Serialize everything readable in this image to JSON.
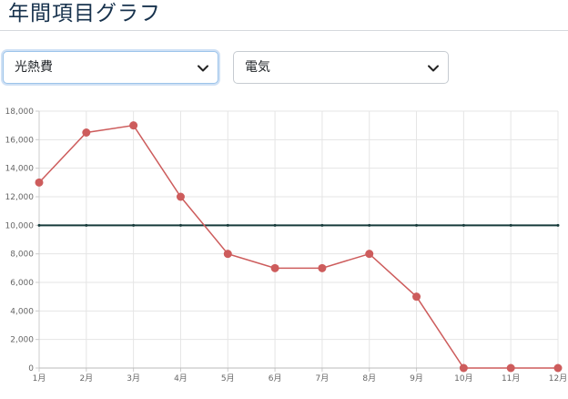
{
  "header": {
    "title": "年間項目グラフ"
  },
  "filters": {
    "category_select": {
      "value": "光熱費"
    },
    "item_select": {
      "value": "電気"
    }
  },
  "colors": {
    "series_line": "#cd5c5c",
    "reference_line": "#173b3b",
    "grid": "#e5e5e5"
  },
  "chart_data": {
    "type": "line",
    "categories": [
      "1月",
      "2月",
      "3月",
      "4月",
      "5月",
      "6月",
      "7月",
      "8月",
      "9月",
      "10月",
      "11月",
      "12月"
    ],
    "series": [
      {
        "values": [
          13000,
          16500,
          17000,
          12000,
          8000,
          7000,
          7000,
          8000,
          5000,
          0,
          0,
          0
        ]
      },
      {
        "values": [
          10000,
          10000,
          10000,
          10000,
          10000,
          10000,
          10000,
          10000,
          10000,
          10000,
          10000,
          10000
        ]
      }
    ],
    "yticks": [
      "0",
      "2,000",
      "4,000",
      "6,000",
      "8,000",
      "10,000",
      "12,000",
      "14,000",
      "16,000",
      "18,000"
    ],
    "ylim": [
      0,
      18000
    ],
    "grid": true,
    "legend": "none"
  }
}
